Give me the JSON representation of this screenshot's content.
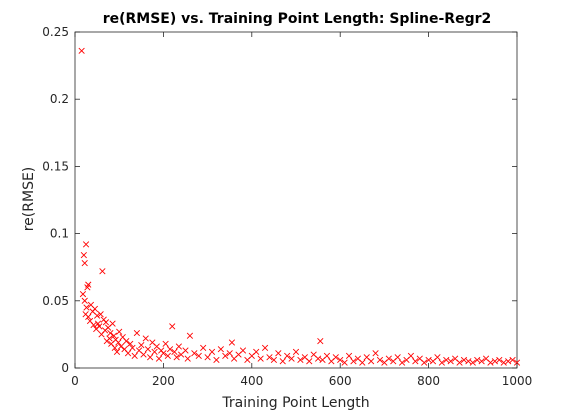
{
  "chart_data": {
    "type": "scatter",
    "title": "re(RMSE) vs. Training Point Length: Spline-Regr2",
    "xlabel": "Training Point Length",
    "ylabel": "re(RMSE)",
    "xlim": [
      0,
      1000
    ],
    "ylim": [
      0,
      0.25
    ],
    "xticks": [
      0,
      200,
      400,
      600,
      800,
      1000
    ],
    "xtick_labels": [
      "0",
      "200",
      "400",
      "600",
      "800",
      "1000"
    ],
    "yticks": [
      0,
      0.05,
      0.1,
      0.15,
      0.2,
      0.25
    ],
    "ytick_labels": [
      "0",
      "0.05",
      "0.1",
      "0.15",
      "0.2",
      "0.25"
    ],
    "grid": false,
    "marker": "x",
    "marker_color": "#ff0000",
    "series": [
      {
        "points": [
          [
            15,
            0.236
          ],
          [
            20,
            0.084
          ],
          [
            22,
            0.078
          ],
          [
            25,
            0.092
          ],
          [
            28,
            0.06
          ],
          [
            30,
            0.062
          ],
          [
            18,
            0.055
          ],
          [
            22,
            0.05
          ],
          [
            26,
            0.045
          ],
          [
            24,
            0.04
          ],
          [
            30,
            0.038
          ],
          [
            34,
            0.035
          ],
          [
            36,
            0.047
          ],
          [
            40,
            0.042
          ],
          [
            42,
            0.032
          ],
          [
            45,
            0.044
          ],
          [
            48,
            0.029
          ],
          [
            50,
            0.039
          ],
          [
            52,
            0.033
          ],
          [
            55,
            0.031
          ],
          [
            58,
            0.04
          ],
          [
            60,
            0.025
          ],
          [
            62,
            0.072
          ],
          [
            65,
            0.036
          ],
          [
            68,
            0.028
          ],
          [
            70,
            0.034
          ],
          [
            72,
            0.02
          ],
          [
            75,
            0.03
          ],
          [
            78,
            0.022
          ],
          [
            80,
            0.026
          ],
          [
            82,
            0.018
          ],
          [
            85,
            0.033
          ],
          [
            88,
            0.024
          ],
          [
            90,
            0.015
          ],
          [
            92,
            0.021
          ],
          [
            95,
            0.012
          ],
          [
            98,
            0.019
          ],
          [
            100,
            0.027
          ],
          [
            104,
            0.016
          ],
          [
            108,
            0.023
          ],
          [
            112,
            0.014
          ],
          [
            116,
            0.02
          ],
          [
            120,
            0.011
          ],
          [
            125,
            0.018
          ],
          [
            130,
            0.015
          ],
          [
            135,
            0.009
          ],
          [
            140,
            0.026
          ],
          [
            145,
            0.013
          ],
          [
            150,
            0.017
          ],
          [
            155,
            0.01
          ],
          [
            160,
            0.022
          ],
          [
            165,
            0.014
          ],
          [
            170,
            0.008
          ],
          [
            175,
            0.019
          ],
          [
            180,
            0.012
          ],
          [
            185,
            0.016
          ],
          [
            190,
            0.007
          ],
          [
            195,
            0.013
          ],
          [
            200,
            0.011
          ],
          [
            205,
            0.018
          ],
          [
            210,
            0.009
          ],
          [
            215,
            0.014
          ],
          [
            220,
            0.031
          ],
          [
            225,
            0.012
          ],
          [
            230,
            0.008
          ],
          [
            235,
            0.016
          ],
          [
            240,
            0.01
          ],
          [
            250,
            0.013
          ],
          [
            255,
            0.007
          ],
          [
            260,
            0.024
          ],
          [
            270,
            0.011
          ],
          [
            280,
            0.009
          ],
          [
            290,
            0.015
          ],
          [
            300,
            0.008
          ],
          [
            310,
            0.012
          ],
          [
            320,
            0.006
          ],
          [
            330,
            0.014
          ],
          [
            340,
            0.009
          ],
          [
            350,
            0.011
          ],
          [
            355,
            0.019
          ],
          [
            360,
            0.007
          ],
          [
            370,
            0.01
          ],
          [
            380,
            0.013
          ],
          [
            390,
            0.006
          ],
          [
            400,
            0.009
          ],
          [
            410,
            0.012
          ],
          [
            420,
            0.007
          ],
          [
            430,
            0.015
          ],
          [
            440,
            0.008
          ],
          [
            450,
            0.006
          ],
          [
            460,
            0.011
          ],
          [
            470,
            0.005
          ],
          [
            480,
            0.009
          ],
          [
            490,
            0.007
          ],
          [
            500,
            0.012
          ],
          [
            510,
            0.006
          ],
          [
            520,
            0.008
          ],
          [
            530,
            0.005
          ],
          [
            540,
            0.01
          ],
          [
            550,
            0.007
          ],
          [
            555,
            0.02
          ],
          [
            560,
            0.006
          ],
          [
            570,
            0.009
          ],
          [
            580,
            0.005
          ],
          [
            590,
            0.008
          ],
          [
            600,
            0.006
          ],
          [
            610,
            0.004
          ],
          [
            620,
            0.009
          ],
          [
            630,
            0.005
          ],
          [
            640,
            0.007
          ],
          [
            650,
            0.004
          ],
          [
            660,
            0.008
          ],
          [
            670,
            0.005
          ],
          [
            680,
            0.011
          ],
          [
            690,
            0.006
          ],
          [
            700,
            0.004
          ],
          [
            710,
            0.007
          ],
          [
            720,
            0.005
          ],
          [
            730,
            0.008
          ],
          [
            740,
            0.004
          ],
          [
            750,
            0.006
          ],
          [
            760,
            0.009
          ],
          [
            770,
            0.005
          ],
          [
            780,
            0.007
          ],
          [
            790,
            0.004
          ],
          [
            800,
            0.006
          ],
          [
            810,
            0.005
          ],
          [
            820,
            0.008
          ],
          [
            830,
            0.004
          ],
          [
            840,
            0.006
          ],
          [
            850,
            0.005
          ],
          [
            860,
            0.007
          ],
          [
            870,
            0.004
          ],
          [
            880,
            0.006
          ],
          [
            890,
            0.005
          ],
          [
            900,
            0.004
          ],
          [
            910,
            0.006
          ],
          [
            920,
            0.005
          ],
          [
            930,
            0.007
          ],
          [
            940,
            0.004
          ],
          [
            950,
            0.005
          ],
          [
            960,
            0.006
          ],
          [
            970,
            0.004
          ],
          [
            980,
            0.005
          ],
          [
            990,
            0.006
          ],
          [
            1000,
            0.004
          ]
        ]
      }
    ]
  }
}
